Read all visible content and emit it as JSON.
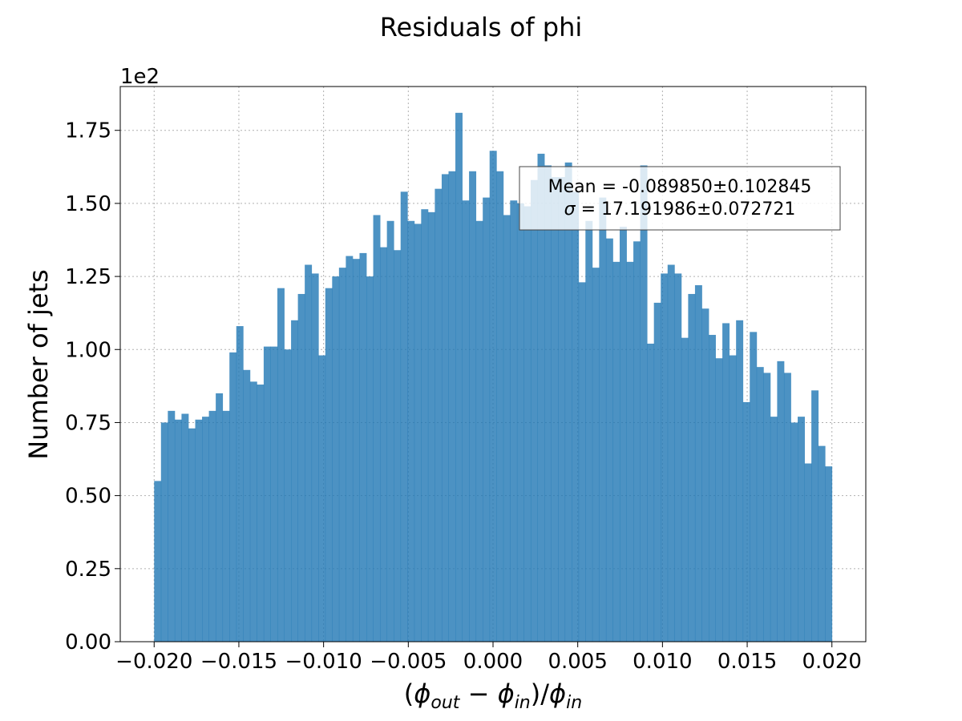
{
  "chart_data": {
    "type": "bar",
    "title": "Residuals of phi",
    "xlabel": "(ϕ_out − ϕ_in)/ϕ_in",
    "xlabel_parts": {
      "open": "(",
      "phi1": "ϕ",
      "sub1": "out",
      "minus": " − ",
      "phi2": "ϕ",
      "sub2": "in",
      "mid": ")/",
      "phi3": "ϕ",
      "sub3": "in"
    },
    "ylabel": "Number of jets",
    "y_multiplier": "1e2",
    "xlim": [
      -0.022,
      0.022
    ],
    "ylim": [
      0,
      1.9
    ],
    "grid": true,
    "color": "#1f77b4",
    "bin_range": [
      -0.02,
      0.02
    ],
    "x_ticks": [
      -0.02,
      -0.015,
      -0.01,
      -0.005,
      0.0,
      0.005,
      0.01,
      0.015,
      0.02
    ],
    "x_tick_labels": [
      "−0.020",
      "−0.015",
      "−0.010",
      "−0.005",
      "0.000",
      "0.005",
      "0.010",
      "0.015",
      "0.020"
    ],
    "y_ticks": [
      0,
      0.25,
      0.5,
      0.75,
      1.0,
      1.25,
      1.5,
      1.75
    ],
    "y_tick_labels": [
      "0.00",
      "0.25",
      "0.50",
      "0.75",
      "1.00",
      "1.25",
      "1.50",
      "1.75"
    ],
    "values": [
      0.55,
      0.75,
      0.79,
      0.76,
      0.78,
      0.73,
      0.76,
      0.77,
      0.79,
      0.85,
      0.79,
      0.99,
      1.08,
      0.93,
      0.89,
      0.88,
      1.01,
      1.01,
      1.21,
      1.0,
      1.1,
      1.19,
      1.29,
      1.26,
      0.98,
      1.21,
      1.25,
      1.28,
      1.32,
      1.31,
      1.33,
      1.25,
      1.46,
      1.35,
      1.44,
      1.34,
      1.54,
      1.44,
      1.43,
      1.48,
      1.47,
      1.55,
      1.6,
      1.61,
      1.81,
      1.51,
      1.61,
      1.44,
      1.52,
      1.68,
      1.61,
      1.46,
      1.51,
      1.5,
      1.49,
      1.58,
      1.67,
      1.63,
      1.59,
      1.59,
      1.64,
      1.54,
      1.23,
      1.44,
      1.28,
      1.52,
      1.38,
      1.3,
      1.42,
      1.3,
      1.37,
      1.63,
      1.02,
      1.16,
      1.26,
      1.29,
      1.26,
      1.04,
      1.19,
      1.22,
      1.14,
      1.05,
      0.97,
      1.09,
      0.98,
      1.1,
      0.82,
      1.06,
      0.94,
      0.92,
      0.77,
      0.96,
      0.92,
      0.75,
      0.77,
      0.61,
      0.86,
      0.67,
      0.6
    ],
    "annotation": {
      "line1": "Mean = -0.089850±0.102845",
      "line2_symbol": "σ",
      "line2_rest": " = 17.191986±0.072721",
      "placement": "upper-right"
    }
  }
}
